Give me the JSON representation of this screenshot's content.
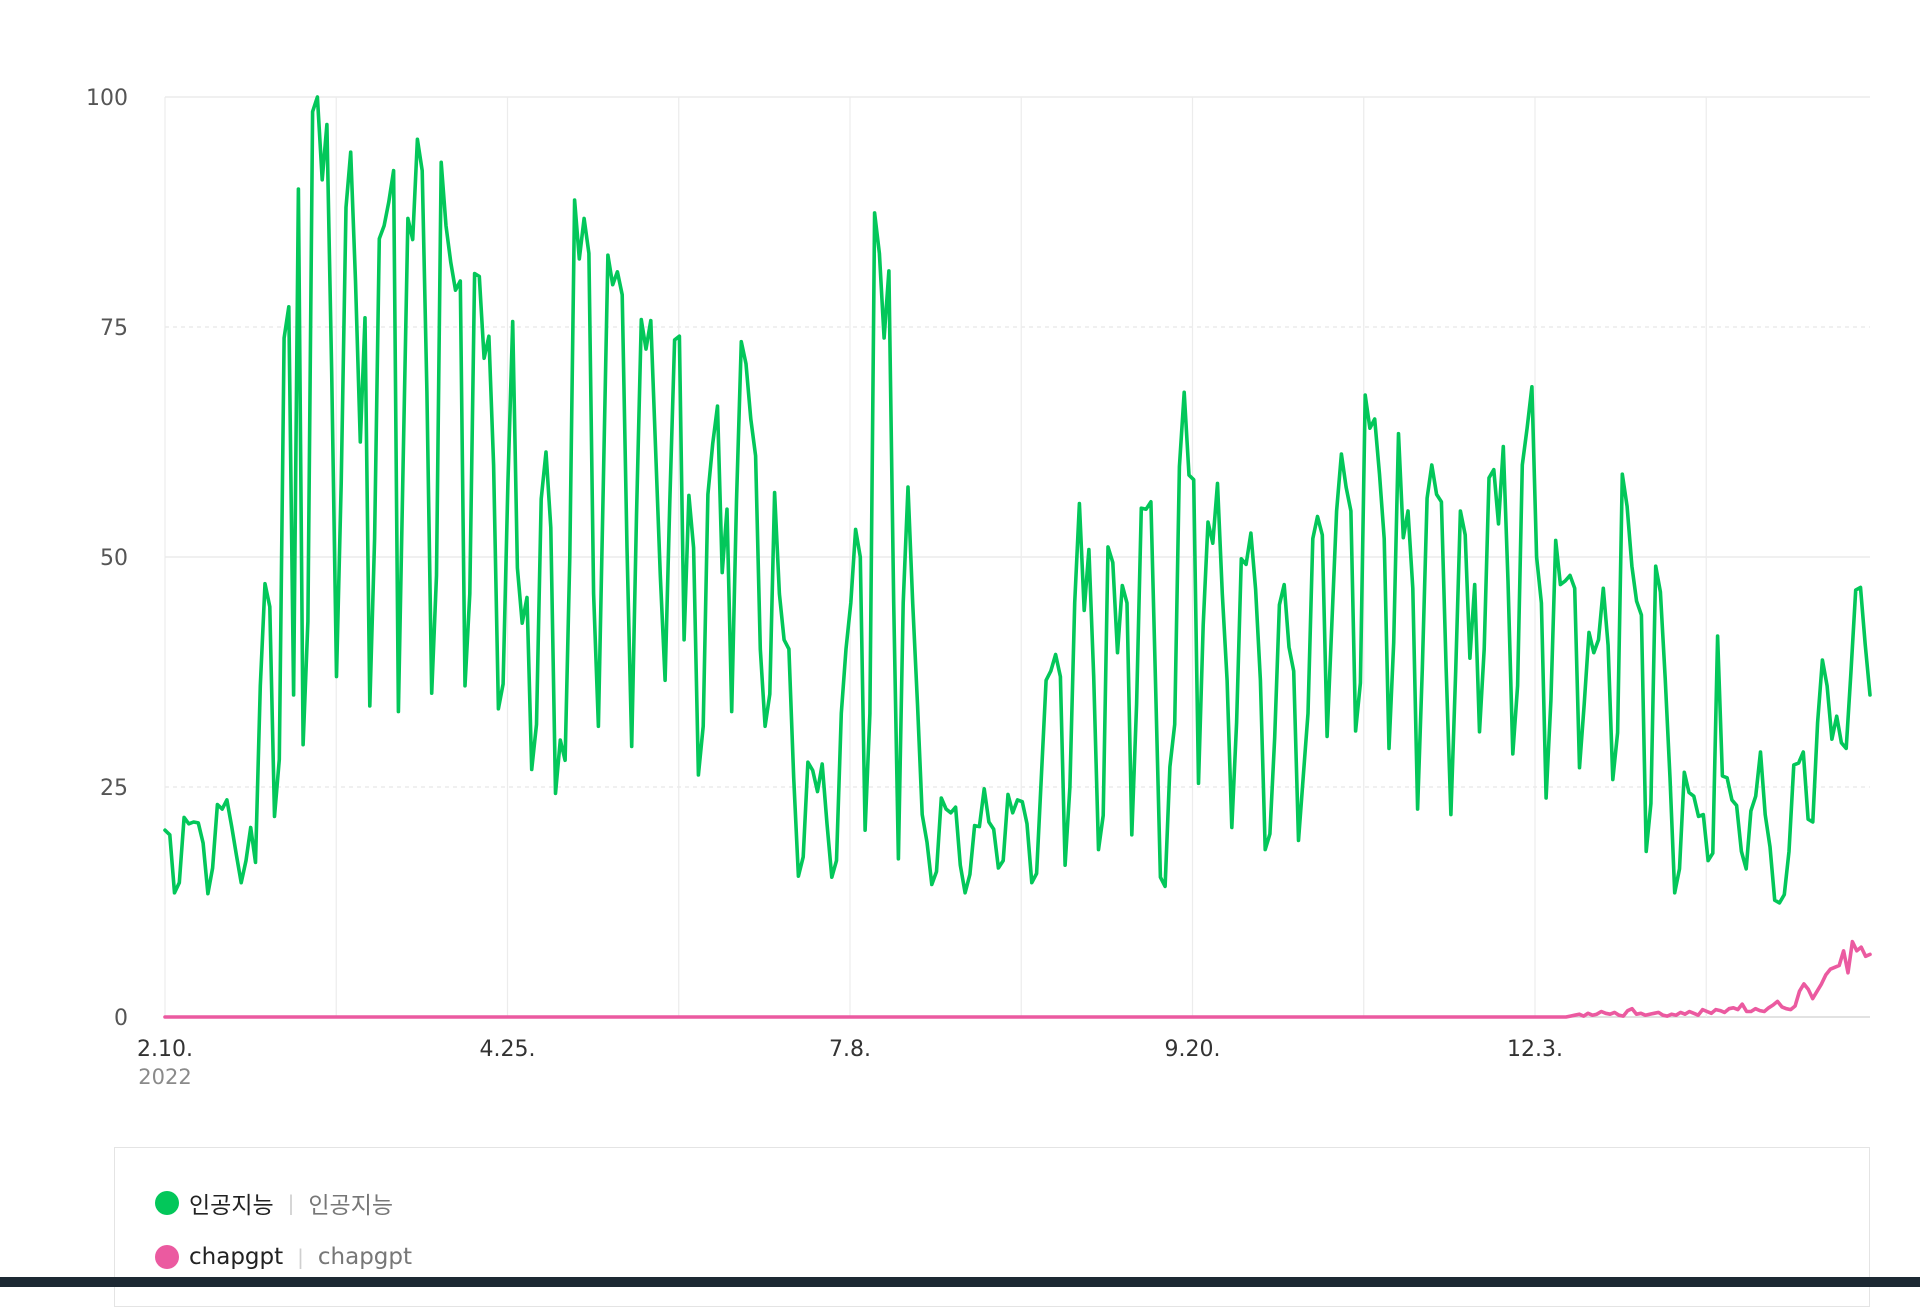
{
  "chart_data": {
    "type": "line",
    "ylim": [
      0,
      100
    ],
    "yticks": [
      {
        "value": 0,
        "label": "0"
      },
      {
        "value": 25,
        "label": "25"
      },
      {
        "value": 50,
        "label": "50"
      },
      {
        "value": 75,
        "label": "75"
      },
      {
        "value": 100,
        "label": "100"
      }
    ],
    "xticks": [
      {
        "label": "2.10.",
        "sub": "2022"
      },
      {
        "label": "4.25.",
        "sub": ""
      },
      {
        "label": "7.8.",
        "sub": ""
      },
      {
        "label": "9.20.",
        "sub": ""
      },
      {
        "label": "12.3.",
        "sub": ""
      }
    ],
    "grid": true,
    "legend_placement": "bottom",
    "series": [
      {
        "name": "인공지능",
        "sub_label": "인공지능",
        "color": "#03c75a",
        "values": [
          20.3,
          19.8,
          13.5,
          14.6,
          21.7,
          21.0,
          21.2,
          21.1,
          18.9,
          13.4,
          16.2,
          23.1,
          22.6,
          23.6,
          20.7,
          17.6,
          14.6,
          17.0,
          20.6,
          16.8,
          36.0,
          47.1,
          44.6,
          21.8,
          28.0,
          73.8,
          77.2,
          35.0,
          90.0,
          29.6,
          43.0,
          98.4,
          100.0,
          91.0,
          97.0,
          70.0,
          37.0,
          58.0,
          88.0,
          94.0,
          80.0,
          62.5,
          76.0,
          33.8,
          52.0,
          84.6,
          86.0,
          88.6,
          92.0,
          33.2,
          60.0,
          86.8,
          84.5,
          95.4,
          92.0,
          68.0,
          35.2,
          48.0,
          92.9,
          86.0,
          82.0,
          79.0,
          80.0,
          36.0,
          46.0,
          80.8,
          80.5,
          71.6,
          74.0,
          60.0,
          33.5,
          36.2,
          58.0,
          75.6,
          48.8,
          42.8,
          45.6,
          26.9,
          31.8,
          56.3,
          61.4,
          53.2,
          24.3,
          30.1,
          27.9,
          50.0,
          88.8,
          82.4,
          86.8,
          83.0,
          46.0,
          31.6,
          57.3,
          82.8,
          79.6,
          81.0,
          78.5,
          51.0,
          29.4,
          54.5,
          75.8,
          72.6,
          75.7,
          62.0,
          48.0,
          36.6,
          56.0,
          73.6,
          74.0,
          41.0,
          56.7,
          51.0,
          26.3,
          31.6,
          56.8,
          62.3,
          66.4,
          48.3,
          55.2,
          33.2,
          56.1,
          73.4,
          71.0,
          65.0,
          61.0,
          40.0,
          31.6,
          35.1,
          57.0,
          46.0,
          41.0,
          40.0,
          26.0,
          15.3,
          17.4,
          27.7,
          26.8,
          24.5,
          27.5,
          21.0,
          15.2,
          17.0,
          33.0,
          40.0,
          45.0,
          53.0,
          50.0,
          20.3,
          33.0,
          87.4,
          83.0,
          73.8,
          81.1,
          45.0,
          17.2,
          45.0,
          57.6,
          45.0,
          34.0,
          22.0,
          19.0,
          14.4,
          15.8,
          23.8,
          22.6,
          22.2,
          22.8,
          16.5,
          13.5,
          15.5,
          20.8,
          20.7,
          24.8,
          21.2,
          20.4,
          16.2,
          17.0,
          24.2,
          22.2,
          23.6,
          23.4,
          21.0,
          14.6,
          15.6,
          26.0,
          36.6,
          37.6,
          39.4,
          37.0,
          16.5,
          25.0,
          45.0,
          55.8,
          44.2,
          50.8,
          37.0,
          18.2,
          21.9,
          51.1,
          49.4,
          39.6,
          46.9,
          45.0,
          19.8,
          34.0,
          55.3,
          55.2,
          56.0,
          36.0,
          15.2,
          14.2,
          27.2,
          31.8,
          59.8,
          67.9,
          58.9,
          58.4,
          25.4,
          42.6,
          53.8,
          51.5,
          58.0,
          46.0,
          36.6,
          20.6,
          32.0,
          49.8,
          49.2,
          52.6,
          46.5,
          36.6,
          18.2,
          19.9,
          30.4,
          44.8,
          47.0,
          40.2,
          37.6,
          19.2,
          26.2,
          33.0,
          52.0,
          54.4,
          52.4,
          30.5,
          42.6,
          55.0,
          61.2,
          57.6,
          55.0,
          31.1,
          36.3,
          67.6,
          64.0,
          65.0,
          59.0,
          52.0,
          29.2,
          40.7,
          63.4,
          52.1,
          55.0,
          46.6,
          22.6,
          37.8,
          56.4,
          60.0,
          56.8,
          56.0,
          38.0,
          22.0,
          37.6,
          55.0,
          52.4,
          39.0,
          47.0,
          31.0,
          40.0,
          58.6,
          59.5,
          53.6,
          62.0,
          47.4,
          28.6,
          36.0,
          60.0,
          64.0,
          68.5,
          50.0,
          45.0,
          23.8,
          34.4,
          51.8,
          47.0,
          47.4,
          48.0,
          46.6,
          27.1,
          34.0,
          41.8,
          39.6,
          41.0,
          46.6,
          40.4,
          25.8,
          30.9,
          59.0,
          55.5,
          49.0,
          45.2,
          43.7,
          18.0,
          23.2,
          49.0,
          46.2,
          36.8,
          26.0,
          13.5,
          16.1,
          26.6,
          24.4,
          24.0,
          21.8,
          22.0,
          17.0,
          17.8,
          41.4,
          26.2,
          26.0,
          23.6,
          23.0,
          18.0,
          16.1,
          22.4,
          24.0,
          28.8,
          22.0,
          18.5,
          12.7,
          12.4,
          13.3,
          18.0,
          27.4,
          27.6,
          28.8,
          21.5,
          21.2,
          32.0,
          38.8,
          36.0,
          30.2,
          32.7,
          29.8,
          29.2,
          37.4,
          46.4,
          46.7,
          40.5,
          35.0
        ]
      },
      {
        "name": "chapgpt",
        "sub_label": "chapgpt",
        "color": "#eb5aa0",
        "values": [
          0,
          0,
          0,
          0,
          0,
          0,
          0,
          0,
          0,
          0,
          0,
          0,
          0,
          0,
          0,
          0,
          0,
          0,
          0,
          0,
          0,
          0,
          0,
          0,
          0,
          0,
          0,
          0,
          0,
          0,
          0,
          0,
          0,
          0,
          0,
          0,
          0,
          0,
          0,
          0,
          0,
          0,
          0,
          0,
          0,
          0,
          0,
          0,
          0,
          0,
          0,
          0,
          0,
          0,
          0,
          0,
          0,
          0,
          0,
          0,
          0,
          0,
          0,
          0,
          0,
          0,
          0,
          0,
          0,
          0,
          0,
          0,
          0,
          0,
          0,
          0,
          0,
          0,
          0,
          0,
          0,
          0,
          0,
          0,
          0,
          0,
          0,
          0,
          0,
          0,
          0,
          0,
          0,
          0,
          0,
          0,
          0,
          0,
          0,
          0,
          0,
          0,
          0,
          0,
          0,
          0,
          0,
          0,
          0,
          0,
          0,
          0,
          0,
          0,
          0,
          0,
          0,
          0,
          0,
          0,
          0,
          0,
          0,
          0,
          0,
          0,
          0,
          0,
          0,
          0,
          0,
          0,
          0,
          0,
          0,
          0,
          0,
          0,
          0,
          0,
          0,
          0,
          0,
          0,
          0,
          0,
          0,
          0,
          0,
          0,
          0,
          0,
          0,
          0,
          0,
          0,
          0,
          0,
          0,
          0,
          0,
          0,
          0,
          0,
          0,
          0,
          0,
          0,
          0,
          0,
          0,
          0,
          0,
          0,
          0,
          0,
          0,
          0,
          0,
          0,
          0,
          0,
          0,
          0,
          0,
          0,
          0,
          0,
          0,
          0,
          0,
          0,
          0,
          0,
          0,
          0,
          0,
          0,
          0,
          0,
          0,
          0,
          0,
          0,
          0,
          0,
          0,
          0,
          0,
          0,
          0,
          0,
          0,
          0,
          0,
          0,
          0,
          0,
          0,
          0,
          0,
          0,
          0,
          0,
          0,
          0,
          0,
          0,
          0,
          0,
          0,
          0,
          0,
          0,
          0,
          0,
          0,
          0,
          0,
          0,
          0,
          0,
          0,
          0,
          0,
          0,
          0,
          0,
          0,
          0,
          0,
          0,
          0,
          0,
          0,
          0,
          0,
          0,
          0,
          0,
          0,
          0,
          0,
          0,
          0,
          0,
          0,
          0,
          0,
          0,
          0,
          0,
          0,
          0,
          0,
          0,
          0,
          0,
          0,
          0,
          0,
          0,
          0,
          0,
          0,
          0,
          0,
          0,
          0,
          0,
          0,
          0,
          0,
          0,
          0,
          0,
          0,
          0,
          0,
          0,
          0,
          0,
          0,
          0,
          0,
          0,
          0,
          0,
          0,
          0,
          0,
          0,
          0,
          0,
          0,
          0,
          0,
          0,
          0,
          0.1,
          0.2,
          0.3,
          0.1,
          0.4,
          0.2,
          0.3,
          0.6,
          0.4,
          0.3,
          0.5,
          0.2,
          0.1,
          0.7,
          0.9,
          0.3,
          0.4,
          0.2,
          0.3,
          0.4,
          0.5,
          0.2,
          0.1,
          0.3,
          0.2,
          0.5,
          0.3,
          0.6,
          0.4,
          0.2,
          0.8,
          0.6,
          0.4,
          0.8,
          0.7,
          0.5,
          0.9,
          1.0,
          0.8,
          1.4,
          0.6,
          0.6,
          0.9,
          0.7,
          0.6,
          1.0,
          1.3,
          1.7,
          1.1,
          0.9,
          0.8,
          1.2,
          2.8,
          3.6,
          3.0,
          2.0,
          2.8,
          3.6,
          4.6,
          5.2,
          5.4,
          5.6,
          7.2,
          4.8,
          8.2,
          7.2,
          7.6,
          6.6,
          6.8
        ]
      }
    ]
  }
}
